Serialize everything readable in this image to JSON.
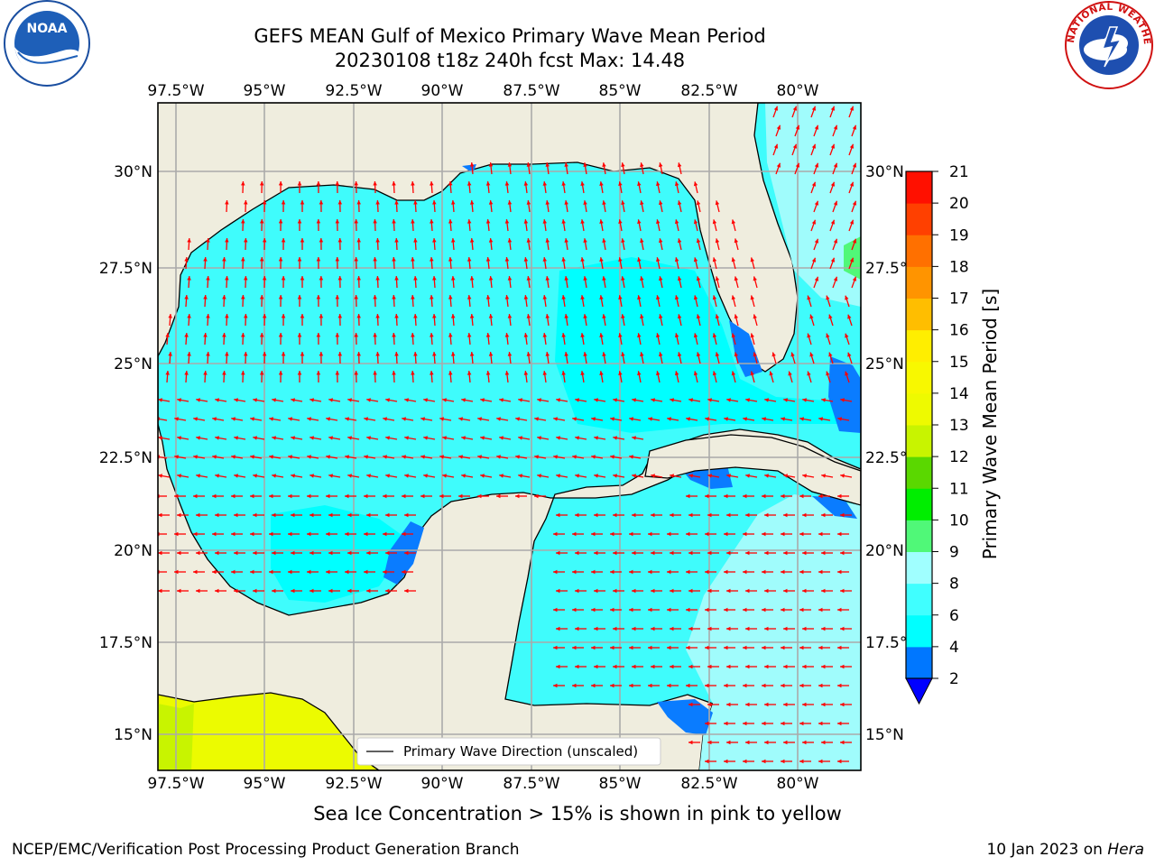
{
  "title": {
    "line1": "GEFS MEAN Gulf of Mexico Primary Wave Mean Period",
    "line2": "20230108 t18z 240h fcst   Max: 14.48"
  },
  "map": {
    "lon_ticks": [
      "97.5°W",
      "95°W",
      "92.5°W",
      "90°W",
      "87.5°W",
      "85°W",
      "82.5°W",
      "80°W"
    ],
    "lat_ticks": [
      "30°N",
      "27.5°N",
      "25°N",
      "22.5°N",
      "20°N",
      "17.5°N",
      "15°N"
    ],
    "legend_label": "Primary Wave Direction (unscaled)",
    "colors": {
      "land": "#efedde",
      "water_4_6": "#00ffff",
      "water_6_8": "#3ffcfc",
      "water_8_9": "#a0fcfc",
      "water_2_4": "#0a7cff",
      "high_13": "#ecfb00",
      "arrow": "#ff0000"
    }
  },
  "colorbar": {
    "label": "Primary Wave Mean Period [s]",
    "ticks": [
      "2",
      "4",
      "6",
      "8",
      "9",
      "10",
      "11",
      "12",
      "13",
      "14",
      "15",
      "16",
      "17",
      "18",
      "19",
      "20",
      "21"
    ],
    "colors": [
      "#0077ff",
      "#00ffff",
      "#40ffff",
      "#a0ffff",
      "#50f878",
      "#00ee00",
      "#5ad800",
      "#c8f400",
      "#eefa00",
      "#f8f800",
      "#ffee00",
      "#ffbe00",
      "#ff9400",
      "#ff7000",
      "#ff4000",
      "#ff1000"
    ],
    "under_color": "#0000ff"
  },
  "ice_note": "Sea Ice Concentration > 15% is shown in pink to yellow",
  "footer": {
    "left": "NCEP/EMC/Verification Post Processing Product Generation Branch",
    "date": "10 Jan 2023 on ",
    "machine": "Hera"
  },
  "logos": {
    "noaa_text": "NOAA",
    "nws_text": "NATIONAL WEATHER SERVICE"
  }
}
